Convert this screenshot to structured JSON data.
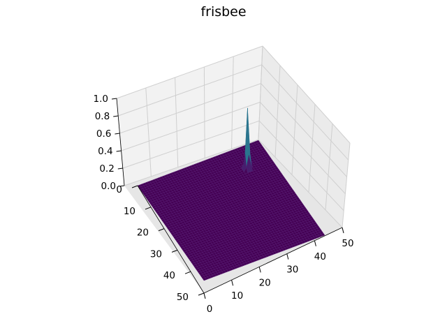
{
  "chart_data": {
    "type": "surface3d",
    "title": "frisbee",
    "xlabel": "",
    "ylabel": "",
    "zlabel": "",
    "grid": true,
    "colormap": "viridis",
    "x_range": [
      0,
      50
    ],
    "y_range": [
      0,
      50
    ],
    "z_range": [
      0,
      1.0
    ],
    "x_ticks": [
      "0",
      "10",
      "20",
      "30",
      "40",
      "50"
    ],
    "y_ticks": [
      "0",
      "10",
      "20",
      "30",
      "40",
      "50"
    ],
    "z_ticks": [
      "0.0",
      "0.2",
      "0.4",
      "0.6",
      "0.8",
      "1.0"
    ],
    "grid_size": 50,
    "peak": {
      "x": 10,
      "y": 40,
      "z": 0.75,
      "width": 0.6
    },
    "baseline": 0.0
  }
}
